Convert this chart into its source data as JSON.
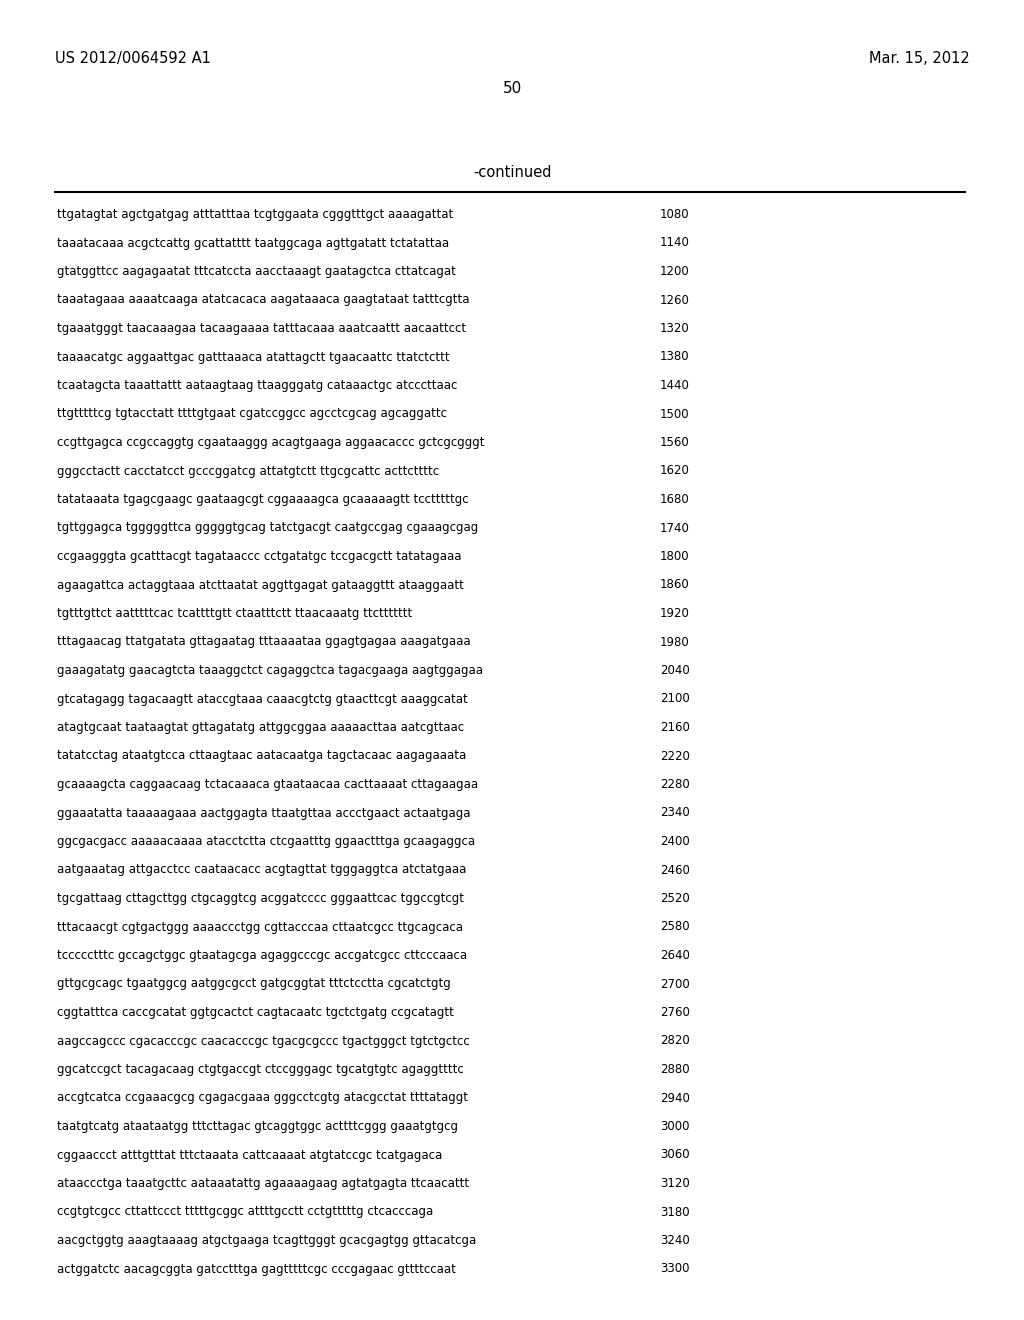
{
  "header_left": "US 2012/0064592 A1",
  "header_right": "Mar. 15, 2012",
  "page_number": "50",
  "continued_label": "-continued",
  "background_color": "#ffffff",
  "text_color": "#000000",
  "sequence_lines": [
    [
      "ttgatagtat agctgatgag atttatttaa tcgtggaata cgggtttgct aaaagattat",
      "1080"
    ],
    [
      "taaatacaaa acgctcattg gcattatttt taatggcaga agttgatatt tctatattaa",
      "1140"
    ],
    [
      "gtatggttcc aagagaatat tttcatccta aacctaaagt gaatagctca cttatcagat",
      "1200"
    ],
    [
      "taaatagaaa aaaatcaaga atatcacaca aagataaaca gaagtataat tatttcgtta",
      "1260"
    ],
    [
      "tgaaatgggt taacaaagaa tacaagaaaa tatttacaaa aaatcaattt aacaattcct",
      "1320"
    ],
    [
      "taaaacatgc aggaattgac gatttaaaca atattagctt tgaacaattc ttatctcttt",
      "1380"
    ],
    [
      "tcaatagcta taaattattt aataagtaag ttaagggatg cataaactgc atcccttaac",
      "1440"
    ],
    [
      "ttgtttttcg tgtacctatt ttttgtgaat cgatccggcc agcctcgcag agcaggattc",
      "1500"
    ],
    [
      "ccgttgagca ccgccaggtg cgaataaggg acagtgaaga aggaacaccc gctcgcgggt",
      "1560"
    ],
    [
      "gggcctactt cacctatcct gcccggatcg attatgtctt ttgcgcattc acttcttttc",
      "1620"
    ],
    [
      "tatataaata tgagcgaagc gaataagcgt cggaaaagca gcaaaaagtt tcctttttgc",
      "1680"
    ],
    [
      "tgttggagca tgggggttca gggggtgcag tatctgacgt caatgccgag cgaaagcgag",
      "1740"
    ],
    [
      "ccgaagggta gcatttacgt tagataaccc cctgatatgc tccgacgctt tatatagaaa",
      "1800"
    ],
    [
      "agaagattca actaggtaaa atcttaatat aggttgagat gataaggttt ataaggaatt",
      "1860"
    ],
    [
      "tgtttgttct aatttttcac tcattttgtt ctaatttctt ttaacaaatg ttcttttttt",
      "1920"
    ],
    [
      "tttagaacag ttatgatata gttagaatag tttaaaataa ggagtgagaa aaagatgaaa",
      "1980"
    ],
    [
      "gaaagatatg gaacagtcta taaaggctct cagaggctca tagacgaaga aagtggagaa",
      "2040"
    ],
    [
      "gtcatagagg tagacaagtt ataccgtaaa caaacgtctg gtaacttcgt aaaggcatat",
      "2100"
    ],
    [
      "atagtgcaat taataagtat gttagatatg attggcggaa aaaaacttaa aatcgttaac",
      "2160"
    ],
    [
      "tatatcctag ataatgtcca cttaagtaac aatacaatga tagctacaac aagagaaata",
      "2220"
    ],
    [
      "gcaaaagcta caggaacaag tctacaaaca gtaataacaa cacttaaaat cttagaagaa",
      "2280"
    ],
    [
      "ggaaatatta taaaaagaaa aactggagta ttaatgttaa accctgaact actaatgaga",
      "2340"
    ],
    [
      "ggcgacgacc aaaaacaaaa atacctctta ctcgaatttg ggaactttga gcaagaggca",
      "2400"
    ],
    [
      "aatgaaatag attgacctcc caataacacc acgtagttat tgggaggtca atctatgaaa",
      "2460"
    ],
    [
      "tgcgattaag cttagcttgg ctgcaggtcg acggatcccc gggaattcac tggccgtcgt",
      "2520"
    ],
    [
      "tttacaacgt cgtgactggg aaaaccctgg cgttacccaa cttaatcgcc ttgcagcaca",
      "2580"
    ],
    [
      "tccccctttc gccagctggc gtaatagcga agaggcccgc accgatcgcc cttcccaaca",
      "2640"
    ],
    [
      "gttgcgcagc tgaatggcg aatggcgcct gatgcggtat tttctcctta cgcatctgtg",
      "2700"
    ],
    [
      "cggtatttca caccgcatat ggtgcactct cagtacaatc tgctctgatg ccgcatagtt",
      "2760"
    ],
    [
      "aagccagccc cgacacccgc caacacccgc tgacgcgccc tgactgggct tgtctgctcc",
      "2820"
    ],
    [
      "ggcatccgct tacagacaag ctgtgaccgt ctccgggagc tgcatgtgtc agaggttttc",
      "2880"
    ],
    [
      "accgtcatca ccgaaacgcg cgagacgaaa gggcctcgtg atacgcctat ttttataggt",
      "2940"
    ],
    [
      "taatgtcatg ataataatgg tttcttagac gtcaggtggc acttttcggg gaaatgtgcg",
      "3000"
    ],
    [
      "cggaaccct atttgtttat tttctaaata cattcaaaat atgtatccgc tcatgagaca",
      "3060"
    ],
    [
      "ataaccctga taaatgcttc aataaatattg agaaaagaag agtatgagta ttcaacattt",
      "3120"
    ],
    [
      "ccgtgtcgcc cttattccct tttttgcggc attttgcctt cctgtttttg ctcacccaga",
      "3180"
    ],
    [
      "aacgctggtg aaagtaaaag atgctgaaga tcagttgggt gcacgagtgg gttacatcga",
      "3240"
    ],
    [
      "actggatctc aacagcggta gatcctttga gagtttttcgc cccgagaac gttttccaat",
      "3300"
    ]
  ],
  "font_family": "monospace",
  "header_fontsize": 10.5,
  "page_num_fontsize": 11,
  "continued_fontsize": 10.5,
  "seq_fontsize": 8.5,
  "num_fontsize": 8.5
}
